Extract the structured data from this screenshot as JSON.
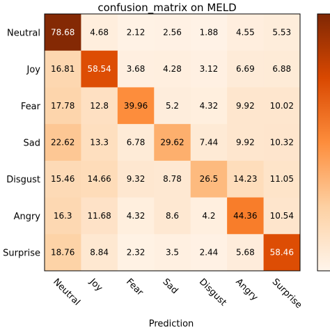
{
  "chart_data": {
    "type": "heatmap",
    "title": "confusion_matrix on MELD",
    "xlabel": "Prediction",
    "ylabel": "",
    "x_categories": [
      "Neutral",
      "Joy",
      "Fear",
      "Sad",
      "Disgust",
      "Angry",
      "Surprise"
    ],
    "y_categories": [
      "Neutral",
      "Joy",
      "Fear",
      "Sad",
      "Disgust",
      "Angry",
      "Surprise"
    ],
    "values": [
      [
        78.68,
        4.68,
        2.12,
        2.56,
        1.88,
        4.55,
        5.53
      ],
      [
        16.81,
        58.54,
        3.68,
        4.28,
        3.12,
        6.69,
        6.88
      ],
      [
        17.78,
        12.8,
        39.96,
        5.2,
        4.32,
        9.92,
        10.02
      ],
      [
        22.62,
        13.3,
        6.78,
        29.62,
        7.44,
        9.92,
        10.32
      ],
      [
        15.46,
        14.66,
        9.32,
        8.78,
        26.5,
        14.23,
        11.05
      ],
      [
        16.3,
        11.68,
        4.32,
        8.6,
        4.2,
        44.36,
        10.54
      ],
      [
        18.76,
        8.84,
        2.32,
        3.5,
        2.44,
        5.68,
        58.46
      ]
    ],
    "value_range": [
      0,
      80
    ],
    "colormap": "Oranges",
    "colorbar": true,
    "grid": false
  }
}
